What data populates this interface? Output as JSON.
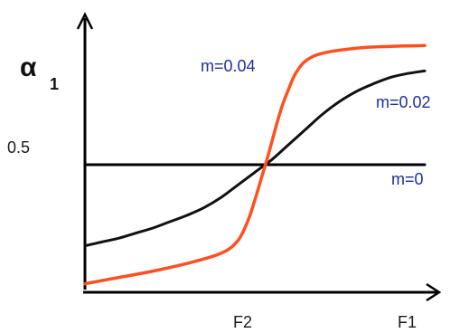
{
  "chart_data": {
    "type": "line",
    "title": "",
    "xlabel": "",
    "ylabel": "α",
    "ylabel_subscript": "1",
    "xlim": [
      0,
      1
    ],
    "ylim": [
      0,
      1
    ],
    "grid": false,
    "x_ticks": [
      {
        "value": 0.55,
        "label": "F2"
      },
      {
        "value": 1.0,
        "label": "F1"
      }
    ],
    "y_ticks": [
      {
        "value": 0.5,
        "label": "0.5"
      }
    ],
    "colors": {
      "axis": "#000000",
      "m0": "#000000",
      "m002": "#111111",
      "m004": "#ff5020",
      "series_label": "#1f2f9f",
      "tick_label": "#1a1a1a"
    },
    "series": [
      {
        "name": "m=0",
        "color": "#000000",
        "label_color": "#1f2f9f",
        "points": [
          [
            0,
            0.5
          ],
          [
            1,
            0.5
          ]
        ]
      },
      {
        "name": "m=0.02",
        "color": "#111111",
        "label_color": "#1f2f9f",
        "points": [
          [
            0.0,
            0.18
          ],
          [
            0.05,
            0.195
          ],
          [
            0.1,
            0.21
          ],
          [
            0.15,
            0.23
          ],
          [
            0.2,
            0.25
          ],
          [
            0.25,
            0.275
          ],
          [
            0.3,
            0.3
          ],
          [
            0.35,
            0.33
          ],
          [
            0.4,
            0.37
          ],
          [
            0.45,
            0.42
          ],
          [
            0.5,
            0.47
          ],
          [
            0.55,
            0.52
          ],
          [
            0.6,
            0.58
          ],
          [
            0.65,
            0.64
          ],
          [
            0.7,
            0.7
          ],
          [
            0.75,
            0.75
          ],
          [
            0.8,
            0.79
          ],
          [
            0.85,
            0.82
          ],
          [
            0.9,
            0.845
          ],
          [
            0.95,
            0.86
          ],
          [
            1.0,
            0.87
          ]
        ]
      },
      {
        "name": "m=0.04",
        "color": "#ff5020",
        "label_color": "#1f2f9f",
        "points": [
          [
            0.0,
            0.03
          ],
          [
            0.1,
            0.055
          ],
          [
            0.2,
            0.08
          ],
          [
            0.3,
            0.11
          ],
          [
            0.4,
            0.15
          ],
          [
            0.45,
            0.2
          ],
          [
            0.48,
            0.28
          ],
          [
            0.5,
            0.36
          ],
          [
            0.52,
            0.45
          ],
          [
            0.54,
            0.54
          ],
          [
            0.56,
            0.64
          ],
          [
            0.58,
            0.73
          ],
          [
            0.6,
            0.8
          ],
          [
            0.62,
            0.86
          ],
          [
            0.65,
            0.91
          ],
          [
            0.7,
            0.94
          ],
          [
            0.8,
            0.96
          ],
          [
            0.9,
            0.967
          ],
          [
            1.0,
            0.97
          ]
        ]
      }
    ],
    "series_labels": {
      "m0": "m=0",
      "m002": "m=0.02",
      "m004": "m=0.04"
    }
  }
}
